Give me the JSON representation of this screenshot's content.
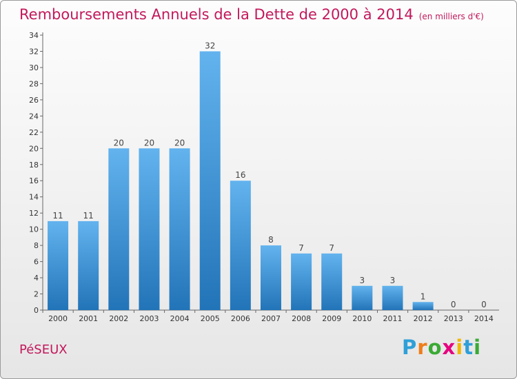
{
  "title": "Remboursements Annuels de la Dette de 2000 à 2014",
  "subtitle": "(en milliers d'€)",
  "location": "PéSEUX",
  "logo": {
    "letters": [
      "P",
      "r",
      "o",
      "x",
      "i",
      "t",
      "i"
    ],
    "colors": [
      "#2f9fd8",
      "#ef7d1a",
      "#3aaa35",
      "#e6007e",
      "#f2b705",
      "#2f9fd8",
      "#3aaa35"
    ]
  },
  "colors": {
    "bar_light": "#62b3ee",
    "bar_dark": "#2274b8",
    "text_accent": "#c2185b"
  },
  "chart_data": {
    "type": "bar",
    "categories": [
      "2000",
      "2001",
      "2002",
      "2003",
      "2004",
      "2005",
      "2006",
      "2007",
      "2008",
      "2009",
      "2010",
      "2011",
      "2012",
      "2013",
      "2014"
    ],
    "values": [
      11,
      11,
      20,
      20,
      20,
      32,
      16,
      8,
      7,
      7,
      3,
      3,
      1,
      0,
      0
    ],
    "title": "Remboursements Annuels de la Dette de 2000 à 2014",
    "ylim": [
      0,
      34
    ],
    "yticks": [
      0,
      2,
      4,
      6,
      8,
      10,
      12,
      14,
      16,
      18,
      20,
      22,
      24,
      26,
      28,
      30,
      32,
      34
    ],
    "grid": false,
    "legend": "none"
  }
}
